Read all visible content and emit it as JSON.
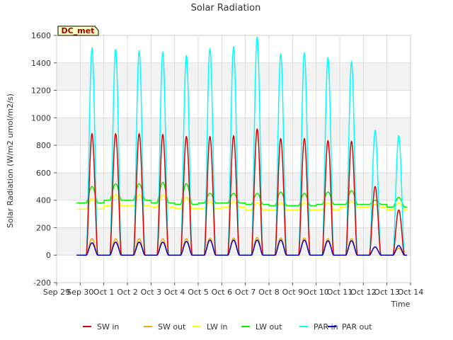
{
  "chart_data": {
    "type": "line",
    "title": "Solar Radiation",
    "xlabel": "Time",
    "ylabel": "Solar Radiation (W/m2 umol/m2/s)",
    "site_label": "DC_met",
    "ylim": [
      -200,
      1600
    ],
    "yticks": [
      -200,
      0,
      200,
      400,
      600,
      800,
      1000,
      1200,
      1400,
      1600
    ],
    "xlim": [
      0,
      15
    ],
    "xticks": [
      {
        "x": 0,
        "label": "Sep 29"
      },
      {
        "x": 1,
        "label": "Sep 30"
      },
      {
        "x": 2,
        "label": "Oct 1"
      },
      {
        "x": 3,
        "label": "Oct 2"
      },
      {
        "x": 4,
        "label": "Oct 3"
      },
      {
        "x": 5,
        "label": "Oct 4"
      },
      {
        "x": 6,
        "label": "Oct 5"
      },
      {
        "x": 7,
        "label": "Oct 6"
      },
      {
        "x": 8,
        "label": "Oct 7"
      },
      {
        "x": 9,
        "label": "Oct 8"
      },
      {
        "x": 10,
        "label": "Oct 9"
      },
      {
        "x": 11,
        "label": "Oct 10"
      },
      {
        "x": 12,
        "label": "Oct 11"
      },
      {
        "x": 13,
        "label": "Oct 12"
      },
      {
        "x": 14,
        "label": "Oct 13"
      },
      {
        "x": 15,
        "label": "Oct 14"
      }
    ],
    "grid": true,
    "background_bands": "alternating grey/white horizontal bands",
    "legend_position": "bottom",
    "days": [
      "Sep 30",
      "Oct 1",
      "Oct 2",
      "Oct 3",
      "Oct 4",
      "Oct 5",
      "Oct 6",
      "Oct 7",
      "Oct 8",
      "Oct 9",
      "Oct 10",
      "Oct 11",
      "Oct 12",
      "Oct 13"
    ],
    "series": [
      {
        "name": "SW in",
        "color": "#dd0000",
        "daily_peak": [
          885,
          885,
          885,
          880,
          865,
          865,
          870,
          920,
          850,
          850,
          835,
          830,
          500,
          330
        ]
      },
      {
        "name": "SW out",
        "color": "#ffa500",
        "daily_peak": [
          120,
          120,
          120,
          120,
          120,
          125,
          125,
          130,
          125,
          125,
          120,
          120,
          60,
          50
        ]
      },
      {
        "name": "LW in",
        "color": "#ffff00",
        "daily_base": [
          335,
          360,
          360,
          350,
          340,
          340,
          350,
          330,
          330,
          330,
          330,
          350,
          350,
          330
        ],
        "daily_peak": [
          410,
          440,
          440,
          440,
          420,
          390,
          390,
          380,
          380,
          380,
          380,
          390,
          370,
          380
        ]
      },
      {
        "name": "LW out",
        "color": "#00ee00",
        "daily_base": [
          380,
          400,
          400,
          380,
          370,
          380,
          380,
          370,
          360,
          360,
          370,
          370,
          370,
          350
        ],
        "daily_peak": [
          500,
          520,
          520,
          530,
          520,
          450,
          450,
          450,
          460,
          450,
          460,
          470,
          400,
          420
        ]
      },
      {
        "name": "PAR in",
        "color": "#00ffff",
        "daily_peak": [
          1510,
          1500,
          1490,
          1480,
          1455,
          1505,
          1520,
          1590,
          1465,
          1475,
          1440,
          1410,
          910,
          870
        ]
      },
      {
        "name": "PAR out",
        "color": "#0000cc",
        "daily_peak": [
          90,
          95,
          95,
          95,
          100,
          110,
          110,
          110,
          110,
          110,
          105,
          105,
          60,
          70
        ]
      }
    ]
  }
}
